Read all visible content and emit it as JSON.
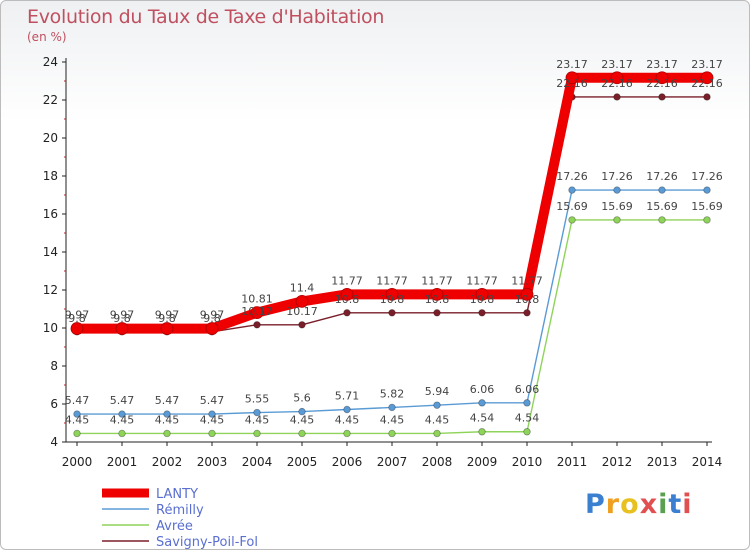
{
  "title": "Evolution du Taux de Taxe d'Habitation",
  "unit": "(en %)",
  "logo_text": "Proxiti",
  "chart_data": {
    "type": "line",
    "title": "Evolution du Taux de Taxe d'Habitation",
    "ylabel": "(en %)",
    "xlabel": "",
    "ylim": [
      4,
      24
    ],
    "yticks": [
      4,
      6,
      8,
      10,
      12,
      14,
      16,
      18,
      20,
      22,
      24
    ],
    "grid": false,
    "legend_position": "bottom-left",
    "categories": [
      "2000",
      "2001",
      "2002",
      "2003",
      "2004",
      "2005",
      "2006",
      "2007",
      "2008",
      "2009",
      "2010",
      "2011",
      "2012",
      "2013",
      "2014"
    ],
    "series": [
      {
        "name": "LANTY",
        "color": "#ee0000",
        "values": [
          9.97,
          9.97,
          9.97,
          9.97,
          10.81,
          11.4,
          11.77,
          11.77,
          11.77,
          11.77,
          11.77,
          23.17,
          23.17,
          23.17,
          23.17
        ],
        "labels": [
          "9.97",
          "9.97",
          "9.97",
          "9.97",
          "10.81",
          "11.4",
          "11.77",
          "11.77",
          "11.77",
          "11.77",
          "11.77",
          "23.17",
          "23.17",
          "23.17",
          "23.17"
        ]
      },
      {
        "name": "Rémilly",
        "color": "#5b9bd5",
        "values": [
          5.47,
          5.47,
          5.47,
          5.47,
          5.55,
          5.6,
          5.71,
          5.82,
          5.94,
          6.06,
          6.06,
          17.26,
          17.26,
          17.26,
          17.26
        ],
        "labels": [
          "5.47",
          "5.47",
          "5.47",
          "5.47",
          "5.55",
          "5.6",
          "5.71",
          "5.82",
          "5.94",
          "6.06",
          "6.06",
          "17.26",
          "17.26",
          "17.26",
          "17.26"
        ]
      },
      {
        "name": "Avrée",
        "color": "#8fd45a",
        "values": [
          4.45,
          4.45,
          4.45,
          4.45,
          4.45,
          4.45,
          4.45,
          4.45,
          4.45,
          4.54,
          4.54,
          15.69,
          15.69,
          15.69,
          15.69
        ],
        "labels": [
          "4.45",
          "4.45",
          "4.45",
          "4.45",
          "4.45",
          "4.45",
          "4.45",
          "4.45",
          "4.45",
          "4.54",
          "4.54",
          "15.69",
          "15.69",
          "15.69",
          "15.69"
        ]
      },
      {
        "name": "Savigny-Poil-Fol",
        "color": "#7a1f2a",
        "values": [
          9.8,
          9.8,
          9.8,
          9.8,
          10.17,
          10.17,
          10.8,
          10.8,
          10.8,
          10.8,
          10.8,
          22.16,
          22.16,
          22.16,
          22.16
        ],
        "labels": [
          "9.8",
          "9.8",
          "9.8",
          "9.8",
          "10.17",
          "10.17",
          "10.8",
          "10.8",
          "10.8",
          "10.8",
          "10.8",
          "22.16",
          "22.16",
          "22.16",
          "22.16"
        ]
      }
    ]
  }
}
